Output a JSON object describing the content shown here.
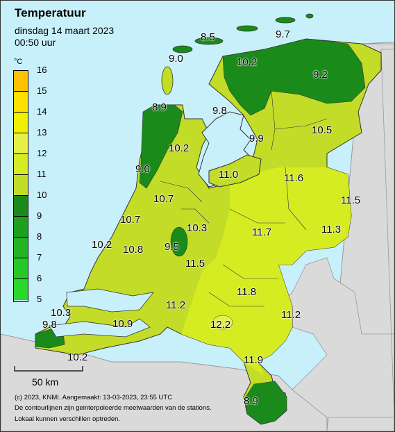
{
  "title": "Temperatuur",
  "date": "dinsdag 14 maart 2023",
  "time": "00:50 uur",
  "legend": {
    "unit": "°C",
    "ticks": [
      "16",
      "15",
      "14",
      "13",
      "12",
      "11",
      "10",
      "9",
      "8",
      "7",
      "6",
      "5"
    ],
    "colors": [
      "#ffc000",
      "#ffe000",
      "#f0f000",
      "#e6f046",
      "#d6ec22",
      "#c2dc27",
      "#1a8a1a",
      "#1ea01e",
      "#22b422",
      "#26c826",
      "#2ad82a"
    ]
  },
  "stations": [
    {
      "value": "8.5",
      "name": "terschelling"
    },
    {
      "value": "9.7",
      "name": "schiermonnikoog"
    },
    {
      "value": "9.0",
      "name": "texel"
    },
    {
      "value": "10.2",
      "name": "leeuwarden"
    },
    {
      "value": "9.2",
      "name": "groningen"
    },
    {
      "value": "8.9",
      "name": "den-helder"
    },
    {
      "value": "9.8",
      "name": "stavoren"
    },
    {
      "value": "9.9",
      "name": "marknesse"
    },
    {
      "value": "10.5",
      "name": "hoogeveen"
    },
    {
      "value": "10.2",
      "name": "berkhout"
    },
    {
      "value": "9.0",
      "name": "ijmuiden"
    },
    {
      "value": "11.0",
      "name": "lelystad"
    },
    {
      "value": "11.6",
      "name": "heino"
    },
    {
      "value": "11.5",
      "name": "twente"
    },
    {
      "value": "10.7",
      "name": "schiphol"
    },
    {
      "value": "10.7",
      "name": "valkenburg"
    },
    {
      "value": "10.3",
      "name": "de-bilt"
    },
    {
      "value": "11.7",
      "name": "deelen"
    },
    {
      "value": "11.3",
      "name": "hupsel"
    },
    {
      "value": "10.2",
      "name": "hoek-van-holland"
    },
    {
      "value": "10.8",
      "name": "rotterdam"
    },
    {
      "value": "9.5",
      "name": "cabauw"
    },
    {
      "value": "11.5",
      "name": "herwijnen"
    },
    {
      "value": "10.3",
      "name": "wilhelminadorp"
    },
    {
      "value": "11.2",
      "name": "gilze-rijen"
    },
    {
      "value": "11.8",
      "name": "volkel"
    },
    {
      "value": "9.8",
      "name": "vlissingen"
    },
    {
      "value": "10.9",
      "name": "woensdrecht"
    },
    {
      "value": "12.2",
      "name": "eindhoven"
    },
    {
      "value": "11.2",
      "name": "arcen"
    },
    {
      "value": "10.2",
      "name": "westdorpe"
    },
    {
      "value": "11.9",
      "name": "ell"
    },
    {
      "value": "8.9",
      "name": "maastricht"
    }
  ],
  "scale_label": "50 km",
  "footer": [
    "(c) 2023, KNMI. Aangemaakt: 13-03-2023, 23:55 UTC",
    "De contourlijnen zijn geinterpoleerde meetwaarden van de stations.",
    "Lokaal kunnen verschillen optreden."
  ]
}
